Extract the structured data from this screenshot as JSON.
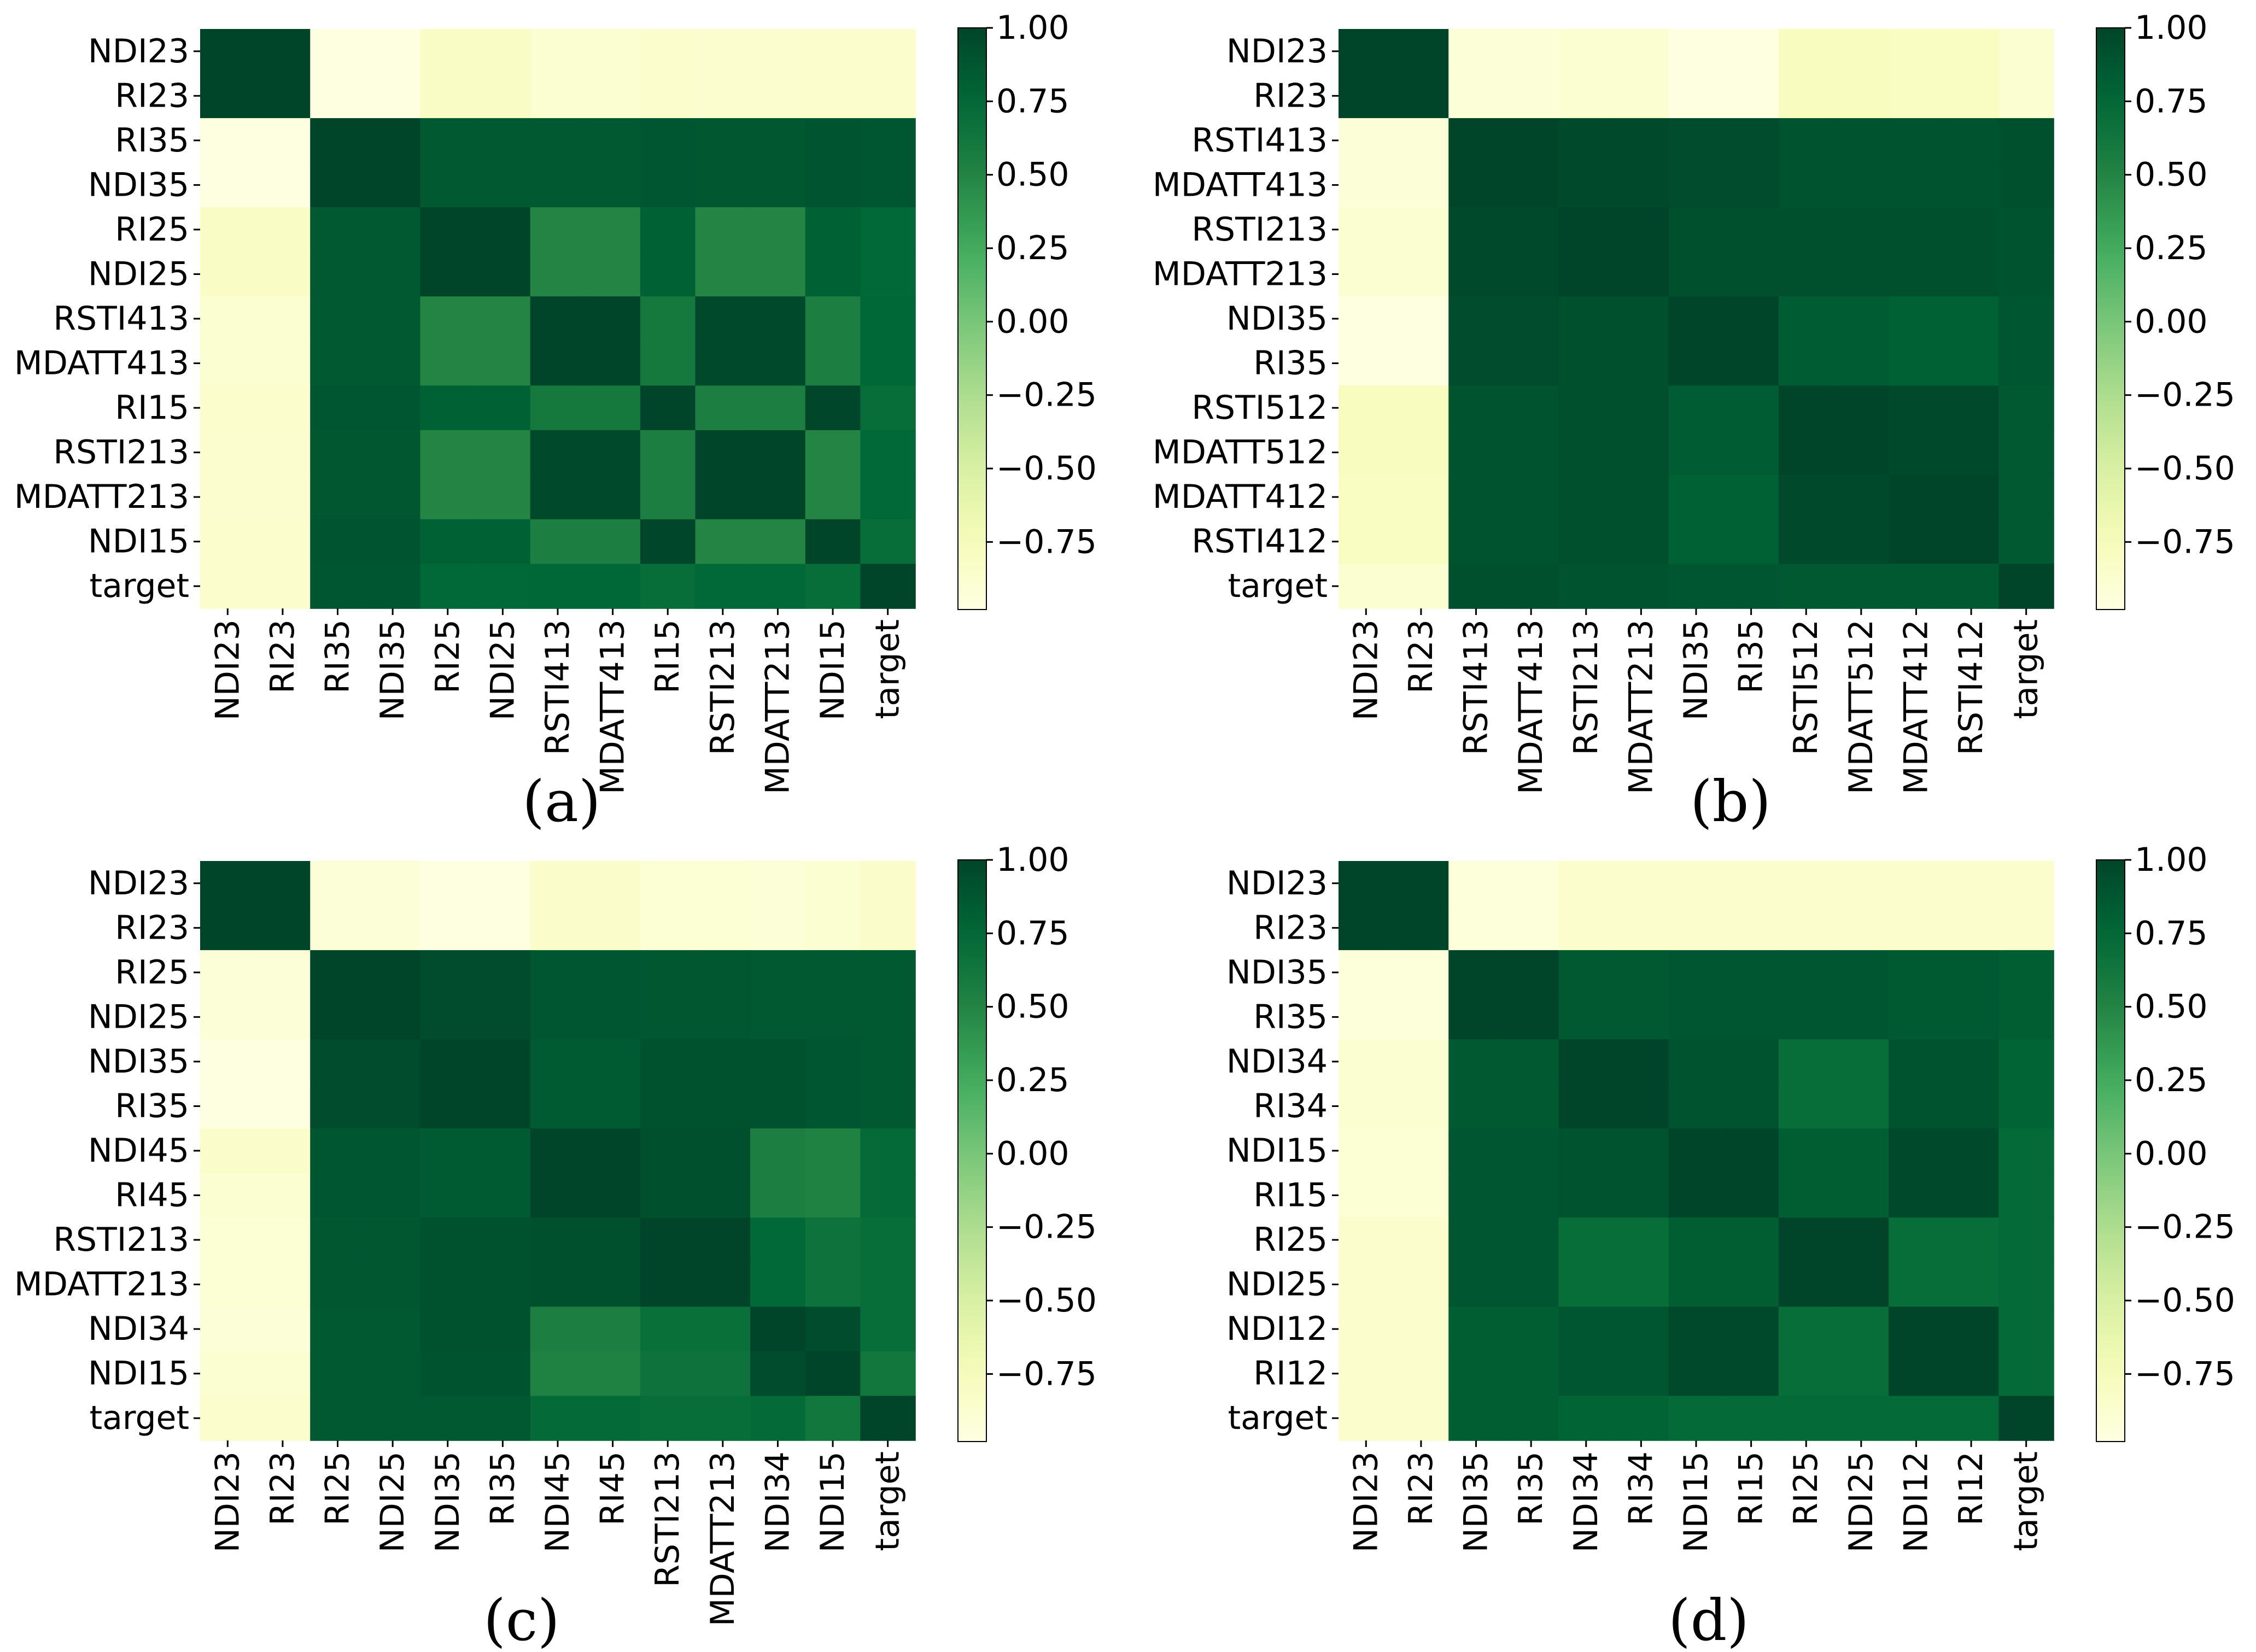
{
  "colormap": {
    "name": "YlGn",
    "vmin": -1.0,
    "vmax": 1.0,
    "stops": [
      "#ffffe5",
      "#f7fcb9",
      "#d9f0a3",
      "#addd8e",
      "#78c679",
      "#41ab5d",
      "#238443",
      "#006837",
      "#004529"
    ]
  },
  "colorbar": {
    "ticks": [
      1.0,
      0.75,
      0.5,
      0.25,
      0.0,
      -0.25,
      -0.5,
      -0.75
    ],
    "tick_labels": [
      "1.00",
      "0.75",
      "0.50",
      "0.25",
      "0.00",
      "−0.25",
      "−0.50",
      "−0.75"
    ],
    "range": [
      -0.98,
      1.0
    ]
  },
  "chart_data": [
    {
      "type": "heatmap",
      "panel_label": "(a)",
      "labels": [
        "NDI23",
        "RI23",
        "RI35",
        "NDI35",
        "RI25",
        "NDI25",
        "RSTI413",
        "MDATT413",
        "RI15",
        "RSTI213",
        "MDATT213",
        "NDI15",
        "target"
      ],
      "values": [
        [
          1.0,
          1.0,
          -0.97,
          -0.97,
          -0.82,
          -0.82,
          -0.88,
          -0.88,
          -0.86,
          -0.87,
          -0.87,
          -0.86,
          -0.86
        ],
        [
          1.0,
          1.0,
          -0.97,
          -0.97,
          -0.82,
          -0.82,
          -0.88,
          -0.88,
          -0.86,
          -0.87,
          -0.87,
          -0.86,
          -0.86
        ],
        [
          -0.97,
          -0.97,
          1.0,
          1.0,
          0.86,
          0.86,
          0.86,
          0.86,
          0.88,
          0.87,
          0.87,
          0.89,
          0.88
        ],
        [
          -0.97,
          -0.97,
          1.0,
          1.0,
          0.86,
          0.86,
          0.86,
          0.86,
          0.88,
          0.87,
          0.87,
          0.89,
          0.88
        ],
        [
          -0.82,
          -0.82,
          0.86,
          0.86,
          1.0,
          1.0,
          0.5,
          0.5,
          0.8,
          0.5,
          0.5,
          0.8,
          0.74
        ],
        [
          -0.82,
          -0.82,
          0.86,
          0.86,
          1.0,
          1.0,
          0.5,
          0.5,
          0.8,
          0.5,
          0.5,
          0.8,
          0.74
        ],
        [
          -0.88,
          -0.88,
          0.86,
          0.86,
          0.5,
          0.5,
          1.0,
          1.0,
          0.6,
          0.97,
          0.97,
          0.55,
          0.76
        ],
        [
          -0.88,
          -0.88,
          0.86,
          0.86,
          0.5,
          0.5,
          1.0,
          1.0,
          0.6,
          0.97,
          0.97,
          0.55,
          0.76
        ],
        [
          -0.86,
          -0.86,
          0.88,
          0.88,
          0.8,
          0.8,
          0.6,
          0.6,
          1.0,
          0.55,
          0.55,
          0.99,
          0.7
        ],
        [
          -0.87,
          -0.87,
          0.87,
          0.87,
          0.5,
          0.5,
          0.97,
          0.97,
          0.55,
          1.0,
          1.0,
          0.5,
          0.74
        ],
        [
          -0.87,
          -0.87,
          0.87,
          0.87,
          0.5,
          0.5,
          0.97,
          0.97,
          0.55,
          1.0,
          1.0,
          0.5,
          0.74
        ],
        [
          -0.86,
          -0.86,
          0.89,
          0.89,
          0.8,
          0.8,
          0.55,
          0.55,
          0.99,
          0.5,
          0.5,
          1.0,
          0.7
        ],
        [
          -0.86,
          -0.86,
          0.88,
          0.88,
          0.74,
          0.74,
          0.76,
          0.76,
          0.7,
          0.74,
          0.74,
          0.7,
          1.0
        ]
      ]
    },
    {
      "type": "heatmap",
      "panel_label": "(b)",
      "labels": [
        "NDI23",
        "RI23",
        "RSTI413",
        "MDATT413",
        "RSTI213",
        "MDATT213",
        "NDI35",
        "RI35",
        "RSTI512",
        "MDATT512",
        "MDATT412",
        "RSTI412",
        "target"
      ],
      "values": [
        [
          1.0,
          1.0,
          -0.92,
          -0.92,
          -0.88,
          -0.88,
          -0.97,
          -0.97,
          -0.78,
          -0.78,
          -0.8,
          -0.8,
          -0.88
        ],
        [
          1.0,
          1.0,
          -0.92,
          -0.92,
          -0.88,
          -0.88,
          -0.97,
          -0.97,
          -0.78,
          -0.78,
          -0.8,
          -0.8,
          -0.88
        ],
        [
          -0.92,
          -0.92,
          1.0,
          1.0,
          0.97,
          0.97,
          0.95,
          0.95,
          0.9,
          0.9,
          0.9,
          0.9,
          0.92
        ],
        [
          -0.92,
          -0.92,
          1.0,
          1.0,
          0.97,
          0.97,
          0.95,
          0.95,
          0.9,
          0.9,
          0.9,
          0.9,
          0.92
        ],
        [
          -0.88,
          -0.88,
          0.97,
          0.97,
          1.0,
          1.0,
          0.92,
          0.92,
          0.93,
          0.93,
          0.93,
          0.93,
          0.9
        ],
        [
          -0.88,
          -0.88,
          0.97,
          0.97,
          1.0,
          1.0,
          0.92,
          0.92,
          0.93,
          0.93,
          0.93,
          0.93,
          0.9
        ],
        [
          -0.97,
          -0.97,
          0.95,
          0.95,
          0.92,
          0.92,
          1.0,
          1.0,
          0.83,
          0.83,
          0.8,
          0.8,
          0.88
        ],
        [
          -0.97,
          -0.97,
          0.95,
          0.95,
          0.92,
          0.92,
          1.0,
          1.0,
          0.83,
          0.83,
          0.8,
          0.8,
          0.88
        ],
        [
          -0.78,
          -0.78,
          0.9,
          0.9,
          0.93,
          0.93,
          0.83,
          0.83,
          1.0,
          1.0,
          0.97,
          0.97,
          0.86
        ],
        [
          -0.78,
          -0.78,
          0.9,
          0.9,
          0.93,
          0.93,
          0.83,
          0.83,
          1.0,
          1.0,
          0.97,
          0.97,
          0.86
        ],
        [
          -0.8,
          -0.8,
          0.9,
          0.9,
          0.93,
          0.93,
          0.8,
          0.8,
          0.97,
          0.97,
          1.0,
          1.0,
          0.86
        ],
        [
          -0.8,
          -0.8,
          0.9,
          0.9,
          0.93,
          0.93,
          0.8,
          0.8,
          0.97,
          0.97,
          1.0,
          1.0,
          0.86
        ],
        [
          -0.88,
          -0.88,
          0.92,
          0.92,
          0.9,
          0.9,
          0.88,
          0.88,
          0.86,
          0.86,
          0.86,
          0.86,
          1.0
        ]
      ]
    },
    {
      "type": "heatmap",
      "panel_label": "(c)",
      "labels": [
        "NDI23",
        "RI23",
        "RI25",
        "NDI25",
        "NDI35",
        "RI35",
        "NDI45",
        "RI45",
        "RSTI213",
        "MDATT213",
        "NDI34",
        "NDI15",
        "target"
      ],
      "values": [
        [
          1.0,
          1.0,
          -0.92,
          -0.92,
          -0.97,
          -0.97,
          -0.84,
          -0.84,
          -0.9,
          -0.9,
          -0.92,
          -0.88,
          -0.84
        ],
        [
          1.0,
          1.0,
          -0.92,
          -0.92,
          -0.97,
          -0.97,
          -0.84,
          -0.84,
          -0.9,
          -0.9,
          -0.92,
          -0.88,
          -0.84
        ],
        [
          -0.92,
          -0.92,
          1.0,
          1.0,
          0.95,
          0.95,
          0.88,
          0.88,
          0.87,
          0.87,
          0.86,
          0.86,
          0.86
        ],
        [
          -0.92,
          -0.92,
          1.0,
          1.0,
          0.95,
          0.95,
          0.88,
          0.88,
          0.87,
          0.87,
          0.86,
          0.86,
          0.86
        ],
        [
          -0.97,
          -0.97,
          0.95,
          0.95,
          1.0,
          1.0,
          0.84,
          0.84,
          0.91,
          0.91,
          0.91,
          0.88,
          0.86
        ],
        [
          -0.97,
          -0.97,
          0.95,
          0.95,
          1.0,
          1.0,
          0.84,
          0.84,
          0.91,
          0.91,
          0.91,
          0.88,
          0.86
        ],
        [
          -0.84,
          -0.84,
          0.88,
          0.88,
          0.84,
          0.84,
          1.0,
          1.0,
          0.92,
          0.92,
          0.55,
          0.52,
          0.72
        ],
        [
          -0.88,
          -0.88,
          0.88,
          0.88,
          0.84,
          0.84,
          1.0,
          1.0,
          0.92,
          0.92,
          0.55,
          0.52,
          0.72
        ],
        [
          -0.9,
          -0.9,
          0.87,
          0.87,
          0.91,
          0.91,
          0.92,
          0.92,
          1.0,
          1.0,
          0.74,
          0.66,
          0.7
        ],
        [
          -0.9,
          -0.9,
          0.87,
          0.87,
          0.91,
          0.91,
          0.92,
          0.92,
          1.0,
          1.0,
          0.74,
          0.66,
          0.7
        ],
        [
          -0.92,
          -0.92,
          0.86,
          0.86,
          0.91,
          0.91,
          0.55,
          0.55,
          0.68,
          0.68,
          1.0,
          0.95,
          0.7
        ],
        [
          -0.88,
          -0.88,
          0.86,
          0.86,
          0.9,
          0.9,
          0.52,
          0.52,
          0.66,
          0.66,
          0.95,
          1.0,
          0.62
        ],
        [
          -0.86,
          -0.86,
          0.86,
          0.86,
          0.86,
          0.86,
          0.72,
          0.72,
          0.7,
          0.7,
          0.72,
          0.62,
          1.0
        ]
      ]
    },
    {
      "type": "heatmap",
      "panel_label": "(d)",
      "labels": [
        "NDI23",
        "RI23",
        "NDI35",
        "RI35",
        "NDI34",
        "RI34",
        "NDI15",
        "RI15",
        "RI25",
        "NDI25",
        "NDI12",
        "RI12",
        "target"
      ],
      "values": [
        [
          1.0,
          1.0,
          -0.94,
          -0.94,
          -0.86,
          -0.86,
          -0.86,
          -0.86,
          -0.86,
          -0.86,
          -0.86,
          -0.86,
          -0.86
        ],
        [
          1.0,
          1.0,
          -0.94,
          -0.94,
          -0.86,
          -0.86,
          -0.86,
          -0.86,
          -0.86,
          -0.86,
          -0.86,
          -0.86,
          -0.86
        ],
        [
          -0.94,
          -0.94,
          1.0,
          1.0,
          0.86,
          0.86,
          0.88,
          0.88,
          0.88,
          0.88,
          0.85,
          0.85,
          0.82
        ],
        [
          -0.94,
          -0.94,
          1.0,
          1.0,
          0.86,
          0.86,
          0.88,
          0.88,
          0.88,
          0.88,
          0.85,
          0.85,
          0.82
        ],
        [
          -0.88,
          -0.88,
          0.86,
          0.86,
          1.0,
          1.0,
          0.9,
          0.9,
          0.7,
          0.7,
          0.9,
          0.9,
          0.78
        ],
        [
          -0.88,
          -0.88,
          0.86,
          0.86,
          1.0,
          1.0,
          0.9,
          0.9,
          0.7,
          0.7,
          0.9,
          0.9,
          0.78
        ],
        [
          -0.9,
          -0.9,
          0.88,
          0.88,
          0.9,
          0.9,
          1.0,
          1.0,
          0.82,
          0.82,
          0.97,
          0.97,
          0.72
        ],
        [
          -0.9,
          -0.9,
          0.88,
          0.88,
          0.9,
          0.9,
          1.0,
          1.0,
          0.82,
          0.82,
          0.97,
          0.97,
          0.72
        ],
        [
          -0.86,
          -0.86,
          0.88,
          0.88,
          0.7,
          0.7,
          0.82,
          0.82,
          1.0,
          1.0,
          0.7,
          0.7,
          0.72
        ],
        [
          -0.86,
          -0.86,
          0.88,
          0.88,
          0.7,
          0.7,
          0.82,
          0.82,
          1.0,
          1.0,
          0.7,
          0.7,
          0.72
        ],
        [
          -0.86,
          -0.86,
          0.82,
          0.82,
          0.88,
          0.88,
          0.97,
          0.97,
          0.7,
          0.7,
          1.0,
          1.0,
          0.72
        ],
        [
          -0.86,
          -0.86,
          0.82,
          0.82,
          0.88,
          0.88,
          0.97,
          0.97,
          0.7,
          0.7,
          1.0,
          1.0,
          0.72
        ],
        [
          -0.86,
          -0.86,
          0.82,
          0.82,
          0.78,
          0.78,
          0.72,
          0.72,
          0.72,
          0.72,
          0.72,
          0.72,
          1.0
        ]
      ]
    }
  ]
}
